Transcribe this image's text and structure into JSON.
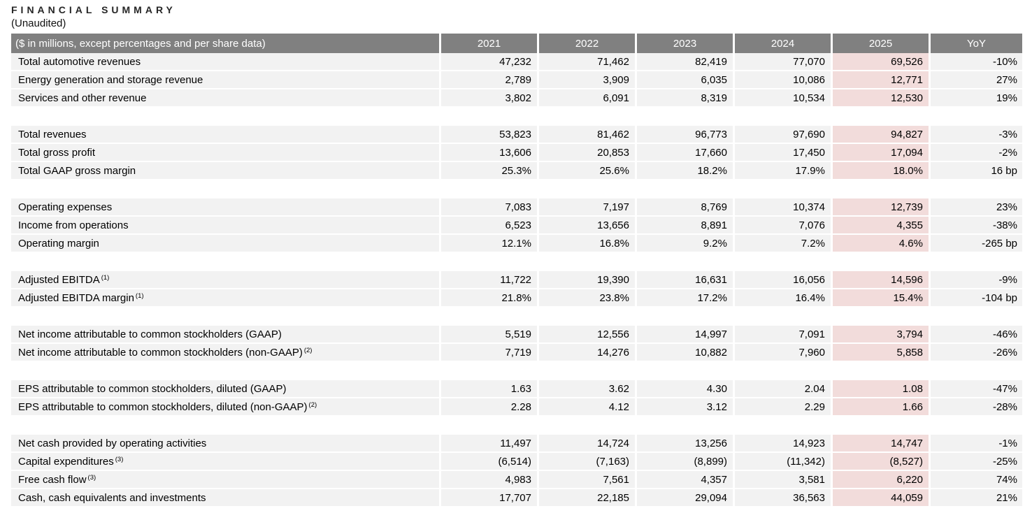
{
  "page": {
    "title": "FINANCIAL SUMMARY",
    "subtitle": "(Unaudited)"
  },
  "table": {
    "header": {
      "label": "($ in millions, except percentages and per share data)",
      "years": [
        "2021",
        "2022",
        "2023",
        "2024",
        "2025"
      ],
      "yoy": "YoY"
    },
    "colors": {
      "header_bg": "#808080",
      "header_text": "#ffffff",
      "row_bg": "#f2f2f2",
      "highlight_bg": "#f2dcdb"
    },
    "groups": [
      {
        "rows": [
          {
            "label": "Total automotive revenues",
            "values": [
              "47,232",
              "71,462",
              "82,419",
              "77,070",
              "69,526"
            ],
            "yoy": "-10%"
          },
          {
            "label": "Energy generation and storage revenue",
            "values": [
              "2,789",
              "3,909",
              "6,035",
              "10,086",
              "12,771"
            ],
            "yoy": "27%"
          },
          {
            "label": "Services and other revenue",
            "values": [
              "3,802",
              "6,091",
              "8,319",
              "10,534",
              "12,530"
            ],
            "yoy": "19%"
          }
        ]
      },
      {
        "rows": [
          {
            "label": "Total revenues",
            "values": [
              "53,823",
              "81,462",
              "96,773",
              "97,690",
              "94,827"
            ],
            "yoy": "-3%"
          },
          {
            "label": "Total gross profit",
            "values": [
              "13,606",
              "20,853",
              "17,660",
              "17,450",
              "17,094"
            ],
            "yoy": "-2%"
          },
          {
            "label": "Total GAAP gross margin",
            "values": [
              "25.3%",
              "25.6%",
              "18.2%",
              "17.9%",
              "18.0%"
            ],
            "yoy": "16 bp"
          }
        ]
      },
      {
        "rows": [
          {
            "label": "Operating expenses",
            "values": [
              "7,083",
              "7,197",
              "8,769",
              "10,374",
              "12,739"
            ],
            "yoy": "23%"
          },
          {
            "label": "Income from operations",
            "values": [
              "6,523",
              "13,656",
              "8,891",
              "7,076",
              "4,355"
            ],
            "yoy": "-38%"
          },
          {
            "label": "Operating margin",
            "values": [
              "12.1%",
              "16.8%",
              "9.2%",
              "7.2%",
              "4.6%"
            ],
            "yoy": "-265 bp"
          }
        ]
      },
      {
        "rows": [
          {
            "label": "Adjusted EBITDA",
            "sup": "(1)",
            "values": [
              "11,722",
              "19,390",
              "16,631",
              "16,056",
              "14,596"
            ],
            "yoy": "-9%"
          },
          {
            "label": "Adjusted EBITDA margin",
            "sup": "(1)",
            "values": [
              "21.8%",
              "23.8%",
              "17.2%",
              "16.4%",
              "15.4%"
            ],
            "yoy": "-104 bp"
          }
        ]
      },
      {
        "rows": [
          {
            "label": "Net income attributable to common stockholders (GAAP)",
            "values": [
              "5,519",
              "12,556",
              "14,997",
              "7,091",
              "3,794"
            ],
            "yoy": "-46%"
          },
          {
            "label": "Net income attributable to common stockholders (non-GAAP)",
            "sup": "(2)",
            "values": [
              "7,719",
              "14,276",
              "10,882",
              "7,960",
              "5,858"
            ],
            "yoy": "-26%"
          }
        ]
      },
      {
        "rows": [
          {
            "label": "EPS attributable to common stockholders, diluted (GAAP)",
            "values": [
              "1.63",
              "3.62",
              "4.30",
              "2.04",
              "1.08"
            ],
            "yoy": "-47%"
          },
          {
            "label": "EPS attributable to common stockholders, diluted (non-GAAP)",
            "sup": "(2)",
            "values": [
              "2.28",
              "4.12",
              "3.12",
              "2.29",
              "1.66"
            ],
            "yoy": "-28%"
          }
        ]
      },
      {
        "rows": [
          {
            "label": "Net cash provided by operating activities",
            "values": [
              "11,497",
              "14,724",
              "13,256",
              "14,923",
              "14,747"
            ],
            "yoy": "-1%"
          },
          {
            "label": "Capital expenditures",
            "sup": "(3)",
            "values": [
              "(6,514)",
              "(7,163)",
              "(8,899)",
              "(11,342)",
              "(8,527)"
            ],
            "yoy": "-25%"
          },
          {
            "label": "Free cash flow",
            "sup": "(3)",
            "values": [
              "4,983",
              "7,561",
              "4,357",
              "3,581",
              "6,220"
            ],
            "yoy": "74%"
          },
          {
            "label": "Cash, cash equivalents and investments",
            "values": [
              "17,707",
              "22,185",
              "29,094",
              "36,563",
              "44,059"
            ],
            "yoy": "21%"
          }
        ]
      }
    ]
  }
}
